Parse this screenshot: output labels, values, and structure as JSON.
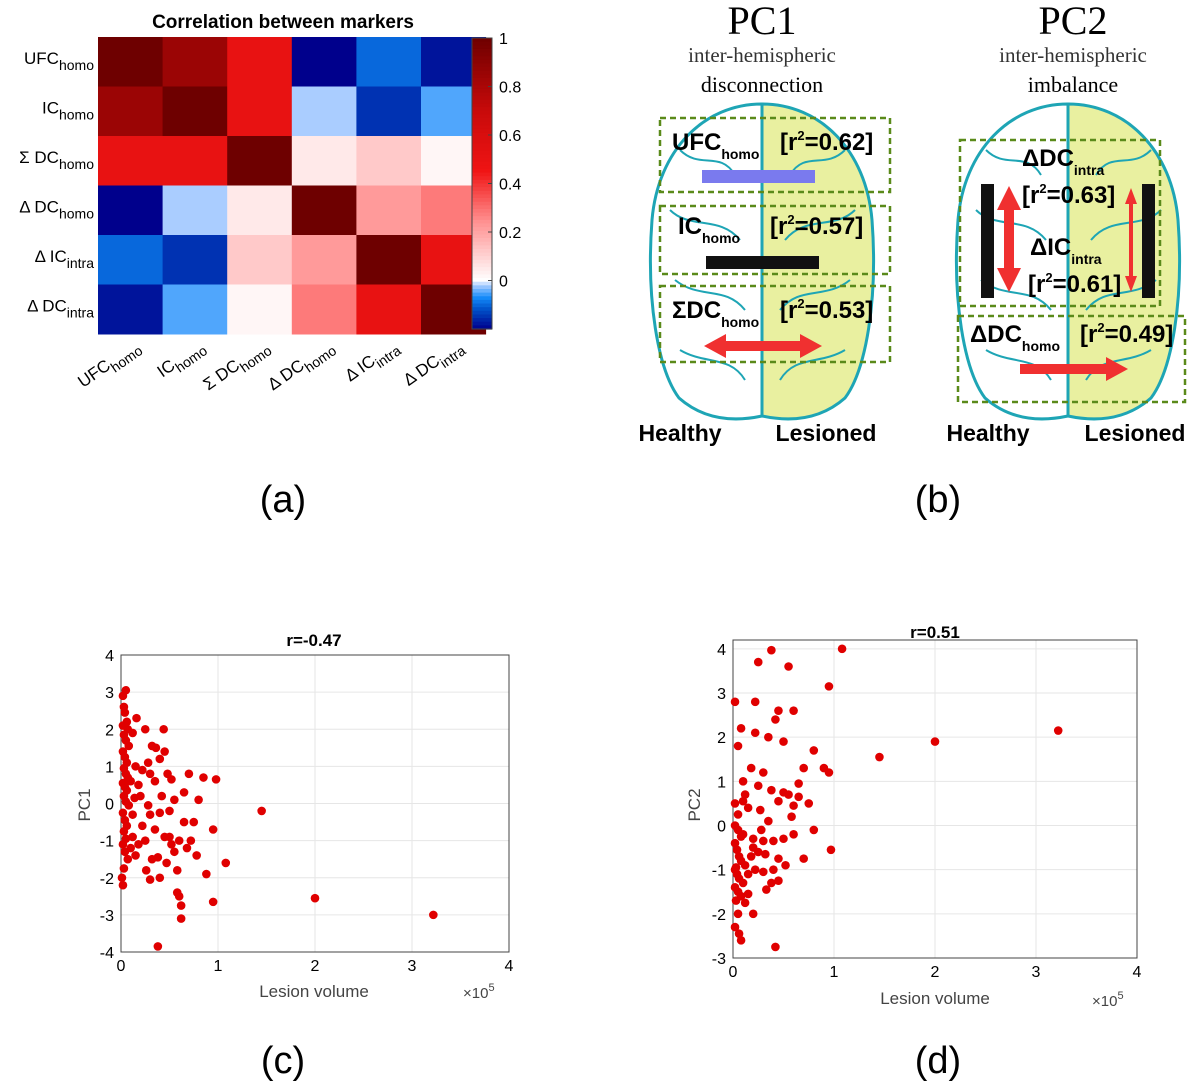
{
  "panel_labels": {
    "a": "(a)",
    "b": "(b)",
    "c": "(c)",
    "d": "(d)"
  },
  "colors": {
    "point": "#e00000",
    "lesion": "#e9f0a0",
    "brain_line": "#1ea5b5",
    "box": "#5a8a1a",
    "purple_bar": "#7a7aee",
    "red_arrow": "#f03030"
  },
  "chart_data": [
    {
      "type": "heatmap",
      "title": "Correlation between markers",
      "row_labels": [
        {
          "base": "UFC",
          "sub": "homo"
        },
        {
          "base": "IC",
          "sub": "homo"
        },
        {
          "base": "Σ DC",
          "sub": "homo"
        },
        {
          "base": "Δ DC",
          "sub": "homo"
        },
        {
          "base": "Δ IC",
          "sub": "intra"
        },
        {
          "base": "Δ DC",
          "sub": "intra"
        }
      ],
      "col_labels": [
        {
          "base": "UFC",
          "sub": "homo"
        },
        {
          "base": "IC",
          "sub": "homo"
        },
        {
          "base": "Σ DC",
          "sub": "homo"
        },
        {
          "base": "Δ DC",
          "sub": "homo"
        },
        {
          "base": "Δ IC",
          "sub": "intra"
        },
        {
          "base": "Δ DC",
          "sub": "intra"
        }
      ],
      "values": [
        [
          1.0,
          0.85,
          0.5,
          -0.2,
          -0.1,
          -0.18
        ],
        [
          0.85,
          1.0,
          0.5,
          -0.02,
          -0.15,
          -0.05
        ],
        [
          0.5,
          0.5,
          1.0,
          0.05,
          0.12,
          0.02
        ],
        [
          -0.2,
          -0.02,
          0.05,
          1.0,
          0.22,
          0.28
        ],
        [
          -0.1,
          -0.15,
          0.12,
          0.22,
          1.0,
          0.5
        ],
        [
          -0.18,
          -0.05,
          0.02,
          0.28,
          0.5,
          1.0
        ]
      ],
      "colorbar_ticks": [
        "1",
        "0.8",
        "0.6",
        "0.4",
        "0.2",
        "0"
      ],
      "colorbar_tick_values": [
        1,
        0.8,
        0.6,
        0.4,
        0.2,
        0
      ],
      "clim": [
        -0.2,
        1.0
      ]
    },
    {
      "type": "scatter",
      "title": "r=-0.47",
      "xlabel": "Lesion volume",
      "ylabel": "PC1",
      "x_exponent": "×10",
      "x_exponent_power": "5",
      "xlim": [
        0,
        4
      ],
      "ylim": [
        -4,
        4
      ],
      "xticks": [
        0,
        1,
        2,
        3,
        4
      ],
      "yticks": [
        4,
        3,
        2,
        1,
        0,
        -1,
        -2,
        -3,
        -4
      ],
      "xticklabels": [
        "0",
        "1",
        "2",
        "3",
        "4"
      ],
      "yticklabels": [
        "4",
        "3",
        "2",
        "1",
        "0",
        "-1",
        "-2",
        "-3",
        "-4"
      ],
      "grid": true,
      "points": [
        [
          0.02,
          2.9
        ],
        [
          0.05,
          3.05
        ],
        [
          0.03,
          2.6
        ],
        [
          0.04,
          2.45
        ],
        [
          0.06,
          2.2
        ],
        [
          0.02,
          2.1
        ],
        [
          0.07,
          2.0
        ],
        [
          0.03,
          1.85
        ],
        [
          0.05,
          1.7
        ],
        [
          0.08,
          1.55
        ],
        [
          0.02,
          1.4
        ],
        [
          0.04,
          1.25
        ],
        [
          0.06,
          1.1
        ],
        [
          0.03,
          0.95
        ],
        [
          0.05,
          0.8
        ],
        [
          0.07,
          0.7
        ],
        [
          0.02,
          0.55
        ],
        [
          0.04,
          0.45
        ],
        [
          0.06,
          0.35
        ],
        [
          0.03,
          0.2
        ],
        [
          0.05,
          0.05
        ],
        [
          0.08,
          -0.05
        ],
        [
          0.02,
          -0.25
        ],
        [
          0.04,
          -0.45
        ],
        [
          0.06,
          -0.6
        ],
        [
          0.03,
          -0.75
        ],
        [
          0.05,
          -0.95
        ],
        [
          0.02,
          -1.1
        ],
        [
          0.04,
          -1.3
        ],
        [
          0.07,
          -1.5
        ],
        [
          0.03,
          -1.75
        ],
        [
          0.01,
          -2.0
        ],
        [
          0.02,
          -2.2
        ],
        [
          0.1,
          -1.2
        ],
        [
          0.15,
          -1.4
        ],
        [
          0.12,
          -0.3
        ],
        [
          0.18,
          0.5
        ],
        [
          0.12,
          1.9
        ],
        [
          0.16,
          2.3
        ],
        [
          0.15,
          1.0
        ],
        [
          0.2,
          0.2
        ],
        [
          0.22,
          -0.6
        ],
        [
          0.25,
          2.0
        ],
        [
          0.25,
          -1.0
        ],
        [
          0.28,
          1.1
        ],
        [
          0.3,
          0.8
        ],
        [
          0.3,
          -0.3
        ],
        [
          0.3,
          -2.05
        ],
        [
          0.32,
          1.55
        ],
        [
          0.35,
          -0.7
        ],
        [
          0.35,
          0.6
        ],
        [
          0.38,
          -1.45
        ],
        [
          0.4,
          1.2
        ],
        [
          0.4,
          -0.25
        ],
        [
          0.4,
          -2.0
        ],
        [
          0.42,
          0.2
        ],
        [
          0.45,
          1.4
        ],
        [
          0.45,
          -0.9
        ],
        [
          0.47,
          -1.6
        ],
        [
          0.48,
          0.8
        ],
        [
          0.5,
          -0.2
        ],
        [
          0.5,
          -0.9
        ],
        [
          0.52,
          -1.1
        ],
        [
          0.55,
          0.1
        ],
        [
          0.55,
          -1.3
        ],
        [
          0.58,
          -1.8
        ],
        [
          0.6,
          -2.5
        ],
        [
          0.62,
          -2.75
        ],
        [
          0.62,
          -3.1
        ],
        [
          0.58,
          -2.4
        ],
        [
          0.65,
          0.3
        ],
        [
          0.65,
          -0.5
        ],
        [
          0.68,
          -1.2
        ],
        [
          0.7,
          0.8
        ],
        [
          0.72,
          -1.0
        ],
        [
          0.75,
          -0.5
        ],
        [
          0.78,
          -1.4
        ],
        [
          0.8,
          0.1
        ],
        [
          0.85,
          0.7
        ],
        [
          0.88,
          -1.9
        ],
        [
          0.95,
          -2.65
        ],
        [
          0.95,
          -0.7
        ],
        [
          0.98,
          0.65
        ],
        [
          1.08,
          -1.6
        ],
        [
          1.45,
          -0.2
        ],
        [
          2.0,
          -2.55
        ],
        [
          3.22,
          -3.0
        ],
        [
          0.38,
          -3.85
        ],
        [
          0.18,
          -1.1
        ],
        [
          0.28,
          -0.05
        ],
        [
          0.44,
          2.0
        ],
        [
          0.32,
          -1.5
        ],
        [
          0.22,
          0.9
        ],
        [
          0.52,
          0.65
        ],
        [
          0.14,
          0.15
        ],
        [
          0.1,
          0.6
        ],
        [
          0.36,
          1.5
        ],
        [
          0.26,
          -1.8
        ],
        [
          0.12,
          -0.9
        ],
        [
          0.6,
          -1.0
        ]
      ]
    },
    {
      "type": "scatter",
      "title": "r=0.51",
      "xlabel": "Lesion volume",
      "ylabel": "PC2",
      "x_exponent": "×10",
      "x_exponent_power": "5",
      "xlim": [
        0,
        4
      ],
      "ylim": [
        -3,
        4.2
      ],
      "xticks": [
        0,
        1,
        2,
        3,
        4
      ],
      "yticks": [
        4,
        3,
        2,
        1,
        0,
        -1,
        -2,
        -3
      ],
      "xticklabels": [
        "0",
        "1",
        "2",
        "3",
        "4"
      ],
      "yticklabels": [
        "4",
        "3",
        "2",
        "1",
        "0",
        "-1",
        "-2",
        "-3"
      ],
      "grid": true,
      "points": [
        [
          0.38,
          3.97
        ],
        [
          1.08,
          4.0
        ],
        [
          0.25,
          3.7
        ],
        [
          0.55,
          3.6
        ],
        [
          0.95,
          3.15
        ],
        [
          0.02,
          2.8
        ],
        [
          0.22,
          2.8
        ],
        [
          0.45,
          2.6
        ],
        [
          0.6,
          2.6
        ],
        [
          0.42,
          2.4
        ],
        [
          0.08,
          2.2
        ],
        [
          0.22,
          2.1
        ],
        [
          0.35,
          2.0
        ],
        [
          0.5,
          1.9
        ],
        [
          0.05,
          1.8
        ],
        [
          0.8,
          1.7
        ],
        [
          1.45,
          1.55
        ],
        [
          2.0,
          1.9
        ],
        [
          3.22,
          2.15
        ],
        [
          0.7,
          1.3
        ],
        [
          0.3,
          1.2
        ],
        [
          0.9,
          1.3
        ],
        [
          0.95,
          1.2
        ],
        [
          0.1,
          1.0
        ],
        [
          0.25,
          0.9
        ],
        [
          0.38,
          0.8
        ],
        [
          0.55,
          0.7
        ],
        [
          0.65,
          0.65
        ],
        [
          0.02,
          0.5
        ],
        [
          0.15,
          0.4
        ],
        [
          0.45,
          0.55
        ],
        [
          0.6,
          0.45
        ],
        [
          0.75,
          0.5
        ],
        [
          0.02,
          0.0
        ],
        [
          0.05,
          -0.1
        ],
        [
          0.1,
          -0.2
        ],
        [
          0.2,
          -0.3
        ],
        [
          0.3,
          -0.35
        ],
        [
          0.4,
          -0.35
        ],
        [
          0.5,
          -0.3
        ],
        [
          0.6,
          -0.2
        ],
        [
          0.8,
          -0.1
        ],
        [
          0.02,
          -0.4
        ],
        [
          0.04,
          -0.55
        ],
        [
          0.06,
          -0.7
        ],
        [
          0.08,
          -0.8
        ],
        [
          0.12,
          -0.9
        ],
        [
          0.18,
          -0.7
        ],
        [
          0.25,
          -0.6
        ],
        [
          0.32,
          -0.65
        ],
        [
          0.45,
          -0.75
        ],
        [
          0.52,
          -0.9
        ],
        [
          0.7,
          -0.75
        ],
        [
          0.97,
          -0.55
        ],
        [
          0.02,
          -1.0
        ],
        [
          0.04,
          -1.1
        ],
        [
          0.06,
          -1.2
        ],
        [
          0.1,
          -1.3
        ],
        [
          0.15,
          -1.1
        ],
        [
          0.22,
          -1.0
        ],
        [
          0.3,
          -1.05
        ],
        [
          0.38,
          -1.3
        ],
        [
          0.45,
          -1.25
        ],
        [
          0.02,
          -1.4
        ],
        [
          0.05,
          -1.5
        ],
        [
          0.08,
          -1.6
        ],
        [
          0.03,
          -1.7
        ],
        [
          0.12,
          -1.75
        ],
        [
          0.2,
          -2.0
        ],
        [
          0.02,
          -2.3
        ],
        [
          0.06,
          -2.45
        ],
        [
          0.08,
          -2.6
        ],
        [
          0.42,
          -2.75
        ],
        [
          0.28,
          -0.1
        ],
        [
          0.35,
          0.1
        ],
        [
          0.58,
          0.2
        ],
        [
          0.12,
          0.7
        ],
        [
          0.2,
          -0.5
        ],
        [
          0.15,
          -1.55
        ],
        [
          0.4,
          -1.0
        ],
        [
          0.05,
          0.25
        ],
        [
          0.08,
          -0.25
        ],
        [
          0.5,
          0.75
        ],
        [
          0.65,
          0.95
        ],
        [
          0.03,
          -0.95
        ],
        [
          0.1,
          0.55
        ],
        [
          0.18,
          1.3
        ],
        [
          0.33,
          -1.45
        ],
        [
          0.27,
          0.35
        ],
        [
          0.05,
          -2.0
        ]
      ]
    }
  ],
  "diagram": {
    "pc1": {
      "title": "PC1",
      "subtitle1": "inter-hemispheric",
      "subtitle2": "disconnection",
      "healthy": "Healthy",
      "lesioned": "Lesioned",
      "boxes": [
        {
          "base": "UFC",
          "sub": "homo",
          "sup": "",
          "r2": "[r",
          "r2val": "=0.62]"
        },
        {
          "base": "IC",
          "sub": "homo",
          "sup": "",
          "r2": "[r",
          "r2val": "=0.57]"
        },
        {
          "base": "ΣDC",
          "sub": "homo",
          "sup": "",
          "r2": "[r",
          "r2val": "=0.53]"
        }
      ]
    },
    "pc2": {
      "title": "PC2",
      "subtitle1": "inter-hemispheric",
      "subtitle2": "imbalance",
      "healthy": "Healthy",
      "lesioned": "Lesioned",
      "boxes": [
        {
          "base": "ΔDC",
          "sub": "intra",
          "r2": "[r",
          "r2val": "=0.63]"
        },
        {
          "base": "ΔIC",
          "sub": "intra",
          "r2": "[r",
          "r2val": "=0.61]"
        },
        {
          "base": "ΔDC",
          "sub": "homo",
          "r2": "[r",
          "r2val": "=0.49]"
        }
      ]
    },
    "r2_sup": "2"
  }
}
